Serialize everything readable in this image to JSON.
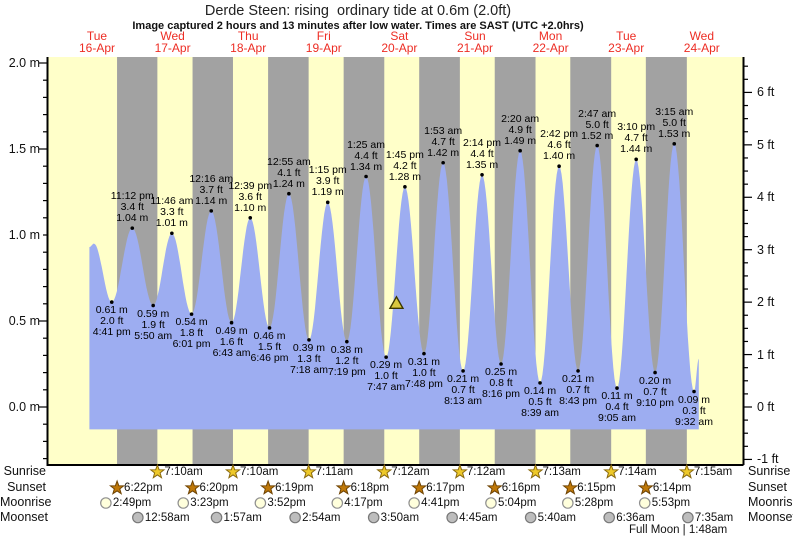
{
  "title": "Derde Steen: rising  ordinary tide at 0.6m (2.0ft)",
  "subtitle": "Image captured 2 hours and 13 minutes after low water. Times are SAST (UTC +2.0hrs)",
  "days": [
    {
      "dow": "Tue",
      "date": "16-Apr"
    },
    {
      "dow": "Wed",
      "date": "17-Apr"
    },
    {
      "dow": "Thu",
      "date": "18-Apr"
    },
    {
      "dow": "Fri",
      "date": "19-Apr"
    },
    {
      "dow": "Sat",
      "date": "20-Apr"
    },
    {
      "dow": "Sun",
      "date": "21-Apr"
    },
    {
      "dow": "Mon",
      "date": "22-Apr"
    },
    {
      "dow": "Tue",
      "date": "23-Apr"
    },
    {
      "dow": "Wed",
      "date": "24-Apr"
    }
  ],
  "chart_data": {
    "type": "area",
    "title": "Derde Steen tide curve, 16-Apr to 24-Apr",
    "xlabel": "date and time (SAST, UTC +2.0hrs)",
    "ylabel_left": "tide height (m)",
    "ylabel_right": "tide height (ft)",
    "left_axis_ticks": [
      {
        "value": 2.0,
        "label": "2.0 m"
      },
      {
        "value": 1.5,
        "label": "1.5 m"
      },
      {
        "value": 1.0,
        "label": "1.0 m"
      },
      {
        "value": 0.5,
        "label": "0.5 m"
      },
      {
        "value": 0.0,
        "label": "0.0 m"
      }
    ],
    "right_axis_ticks": [
      {
        "value": 6,
        "label": "6 ft"
      },
      {
        "value": 5,
        "label": "5 ft"
      },
      {
        "value": 4,
        "label": "4 ft"
      },
      {
        "value": 3,
        "label": "3 ft"
      },
      {
        "value": 2,
        "label": "2 ft"
      },
      {
        "value": 1,
        "label": "1 ft"
      },
      {
        "value": 0,
        "label": "0 ft"
      },
      {
        "value": -1,
        "label": "-1 ft"
      }
    ],
    "tide_events": [
      {
        "day": 0,
        "time": "4:41 pm",
        "type": "low",
        "ft": "2.0 ft",
        "m": "0.61 m"
      },
      {
        "day": 0,
        "time": "11:12 pm",
        "type": "high",
        "ft": "3.4 ft",
        "m": "1.04 m"
      },
      {
        "day": 1,
        "time": "5:50 am",
        "type": "low",
        "ft": "1.9 ft",
        "m": "0.59 m"
      },
      {
        "day": 1,
        "time": "11:46 am",
        "type": "high",
        "ft": "3.3 ft",
        "m": "1.01 m"
      },
      {
        "day": 1,
        "time": "6:01 pm",
        "type": "low",
        "ft": "1.8 ft",
        "m": "0.54 m"
      },
      {
        "day": 2,
        "time": "12:16 am",
        "type": "high",
        "ft": "3.7 ft",
        "m": "1.14 m"
      },
      {
        "day": 2,
        "time": "6:43 am",
        "type": "low",
        "ft": "1.6 ft",
        "m": "0.49 m"
      },
      {
        "day": 2,
        "time": "12:39 pm",
        "type": "high",
        "ft": "3.6 ft",
        "m": "1.10 m"
      },
      {
        "day": 2,
        "time": "6:46 pm",
        "type": "low",
        "ft": "1.5 ft",
        "m": "0.46 m"
      },
      {
        "day": 3,
        "time": "12:55 am",
        "type": "high",
        "ft": "4.1 ft",
        "m": "1.24 m"
      },
      {
        "day": 3,
        "time": "7:18 am",
        "type": "low",
        "ft": "1.3 ft",
        "m": "0.39 m"
      },
      {
        "day": 3,
        "time": "1:15 pm",
        "type": "high",
        "ft": "3.9 ft",
        "m": "1.19 m"
      },
      {
        "day": 3,
        "time": "7:19 pm",
        "type": "low",
        "ft": "1.2 ft",
        "m": "0.38 m"
      },
      {
        "day": 4,
        "time": "1:25 am",
        "type": "high",
        "ft": "4.4 ft",
        "m": "1.34 m"
      },
      {
        "day": 4,
        "time": "7:47 am",
        "type": "low",
        "ft": "1.0 ft",
        "m": "0.29 m"
      },
      {
        "day": 4,
        "time": "1:45 pm",
        "type": "high",
        "ft": "4.2 ft",
        "m": "1.28 m"
      },
      {
        "day": 4,
        "time": "7:48 pm",
        "type": "low",
        "ft": "1.0 ft",
        "m": "0.31 m"
      },
      {
        "day": 5,
        "time": "1:53 am",
        "type": "high",
        "ft": "4.7 ft",
        "m": "1.42 m"
      },
      {
        "day": 5,
        "time": "8:13 am",
        "type": "low",
        "ft": "0.7 ft",
        "m": "0.21 m"
      },
      {
        "day": 5,
        "time": "2:14 pm",
        "type": "high",
        "ft": "4.4 ft",
        "m": "1.35 m"
      },
      {
        "day": 5,
        "time": "8:16 pm",
        "type": "low",
        "ft": "0.8 ft",
        "m": "0.25 m"
      },
      {
        "day": 6,
        "time": "2:20 am",
        "type": "high",
        "ft": "4.9 ft",
        "m": "1.49 m"
      },
      {
        "day": 6,
        "time": "8:39 am",
        "type": "low",
        "ft": "0.5 ft",
        "m": "0.14 m"
      },
      {
        "day": 6,
        "time": "2:42 pm",
        "type": "high",
        "ft": "4.6 ft",
        "m": "1.40 m"
      },
      {
        "day": 6,
        "time": "8:43 pm",
        "type": "low",
        "ft": "0.7 ft",
        "m": "0.21 m"
      },
      {
        "day": 7,
        "time": "2:47 am",
        "type": "high",
        "ft": "5.0 ft",
        "m": "1.52 m"
      },
      {
        "day": 7,
        "time": "9:05 am",
        "type": "low",
        "ft": "0.4 ft",
        "m": "0.11 m"
      },
      {
        "day": 7,
        "time": "3:10 pm",
        "type": "high",
        "ft": "4.7 ft",
        "m": "1.44 m"
      },
      {
        "day": 7,
        "time": "9:10 pm",
        "type": "low",
        "ft": "0.7 ft",
        "m": "0.20 m"
      },
      {
        "day": 8,
        "time": "3:15 am",
        "type": "high",
        "ft": "5.0 ft",
        "m": "1.53 m"
      },
      {
        "day": 8,
        "time": "9:32 am",
        "type": "low",
        "ft": "0.3 ft",
        "m": "0.09 m"
      }
    ],
    "curve_anchors_start": [
      {
        "t_days": 0.4,
        "height_m": 0.93
      },
      {
        "t_days": 0.46,
        "height_m": 0.95
      }
    ],
    "curve_anchors_end": [
      {
        "t_days": 8.46,
        "height_m": 0.28
      }
    ],
    "fill_baseline_m": -0.13,
    "current_marker": {
      "t_days": 4.461,
      "height_m": 0.6
    }
  },
  "astro": {
    "rows": [
      {
        "label": "Sunrise",
        "icon": "sunrise-star",
        "times": [
          {
            "day": 1,
            "time": "7:10am"
          },
          {
            "day": 2,
            "time": "7:10am"
          },
          {
            "day": 3,
            "time": "7:11am"
          },
          {
            "day": 4,
            "time": "7:12am"
          },
          {
            "day": 5,
            "time": "7:12am"
          },
          {
            "day": 6,
            "time": "7:13am"
          },
          {
            "day": 7,
            "time": "7:14am"
          },
          {
            "day": 8,
            "time": "7:15am"
          }
        ]
      },
      {
        "label": "Sunset",
        "icon": "sunset-star",
        "times": [
          {
            "day": 0,
            "time": "6:22pm"
          },
          {
            "day": 1,
            "time": "6:20pm"
          },
          {
            "day": 2,
            "time": "6:19pm"
          },
          {
            "day": 3,
            "time": "6:18pm"
          },
          {
            "day": 4,
            "time": "6:17pm"
          },
          {
            "day": 5,
            "time": "6:16pm"
          },
          {
            "day": 6,
            "time": "6:15pm"
          },
          {
            "day": 7,
            "time": "6:14pm"
          }
        ]
      },
      {
        "label": "Moonrise",
        "icon": "moonrise-circle",
        "times": [
          {
            "day": 0,
            "time": "2:49pm"
          },
          {
            "day": 1,
            "time": "3:23pm"
          },
          {
            "day": 2,
            "time": "3:52pm"
          },
          {
            "day": 3,
            "time": "4:17pm"
          },
          {
            "day": 4,
            "time": "4:41pm"
          },
          {
            "day": 5,
            "time": "5:04pm"
          },
          {
            "day": 6,
            "time": "5:28pm"
          },
          {
            "day": 7,
            "time": "5:53pm"
          }
        ]
      },
      {
        "label": "Moonset",
        "icon": "moonset-circle",
        "times": [
          {
            "day": 1,
            "time": "12:58am"
          },
          {
            "day": 2,
            "time": "1:57am"
          },
          {
            "day": 3,
            "time": "2:54am"
          },
          {
            "day": 4,
            "time": "3:50am"
          },
          {
            "day": 5,
            "time": "4:45am"
          },
          {
            "day": 6,
            "time": "5:40am"
          },
          {
            "day": 7,
            "time": "6:36am"
          },
          {
            "day": 8,
            "time": "7:35am"
          }
        ]
      }
    ],
    "full_moon_note": "Full Moon | 1:48am"
  },
  "colors": {
    "day_band": "#ffffc9",
    "night_band": "#a2a2a2",
    "tide_fill": "#9dadf1",
    "header_red": "#ed2d24",
    "axis_black": "#000000",
    "sunrise_star_fill": "#eec929",
    "sunrise_star_stroke": "#8a6a10",
    "sunset_star_fill": "#bf7808",
    "sunset_star_stroke": "#6f4404",
    "moonrise_fill": "#ffffdc",
    "moonrise_stroke": "#8f8f8f",
    "moonset_fill": "#bdbdbd",
    "moonset_stroke": "#787878",
    "marker_fill": "#d9c83e",
    "marker_stroke": "#3c3800"
  }
}
